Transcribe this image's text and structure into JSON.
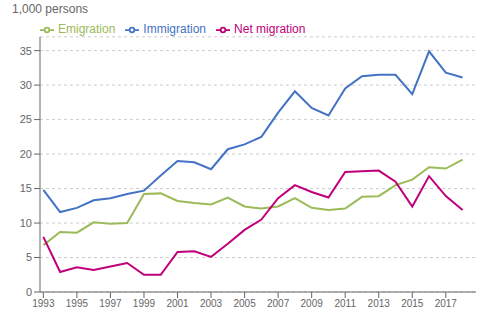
{
  "chart_data": {
    "type": "line",
    "ylabel": "1,000 persons",
    "x": [
      1993,
      1994,
      1995,
      1996,
      1997,
      1998,
      1999,
      2000,
      2001,
      2002,
      2003,
      2004,
      2005,
      2006,
      2007,
      2008,
      2009,
      2010,
      2011,
      2012,
      2013,
      2014,
      2015,
      2016,
      2017,
      2018
    ],
    "series": [
      {
        "name": "Immigration",
        "color": "#4472C4",
        "values": [
          14.8,
          11.6,
          12.2,
          13.3,
          13.6,
          14.2,
          14.7,
          16.9,
          19.0,
          18.8,
          17.8,
          20.7,
          21.4,
          22.5,
          26.0,
          29.1,
          26.7,
          25.6,
          29.5,
          31.3,
          31.5,
          31.5,
          28.7,
          34.9,
          31.8,
          31.1
        ]
      },
      {
        "name": "Emigration",
        "color": "#9BBB59",
        "values": [
          6.8,
          8.7,
          8.6,
          10.1,
          9.9,
          10.0,
          14.2,
          14.3,
          13.2,
          12.9,
          12.7,
          13.7,
          12.4,
          12.1,
          12.4,
          13.6,
          12.2,
          11.9,
          12.1,
          13.8,
          13.9,
          15.5,
          16.3,
          18.1,
          17.9,
          19.2
        ]
      },
      {
        "name": "Net migration",
        "color": "#C0007A",
        "values": [
          8.0,
          2.9,
          3.6,
          3.2,
          3.7,
          4.2,
          2.5,
          2.5,
          5.8,
          5.9,
          5.1,
          7.0,
          9.0,
          10.5,
          13.6,
          15.5,
          14.5,
          13.7,
          17.4,
          17.5,
          17.6,
          16.0,
          12.4,
          16.8,
          13.9,
          11.9
        ]
      }
    ],
    "xlim": [
      1992.8,
      2018.8
    ],
    "xticks": [
      1993,
      1995,
      1997,
      1999,
      2001,
      2003,
      2005,
      2007,
      2009,
      2011,
      2013,
      2015,
      2017
    ],
    "ylim": [
      0,
      37
    ],
    "yticks": [
      0,
      5,
      10,
      15,
      20,
      25,
      30,
      35
    ],
    "grid": true,
    "legend": "upper left"
  }
}
